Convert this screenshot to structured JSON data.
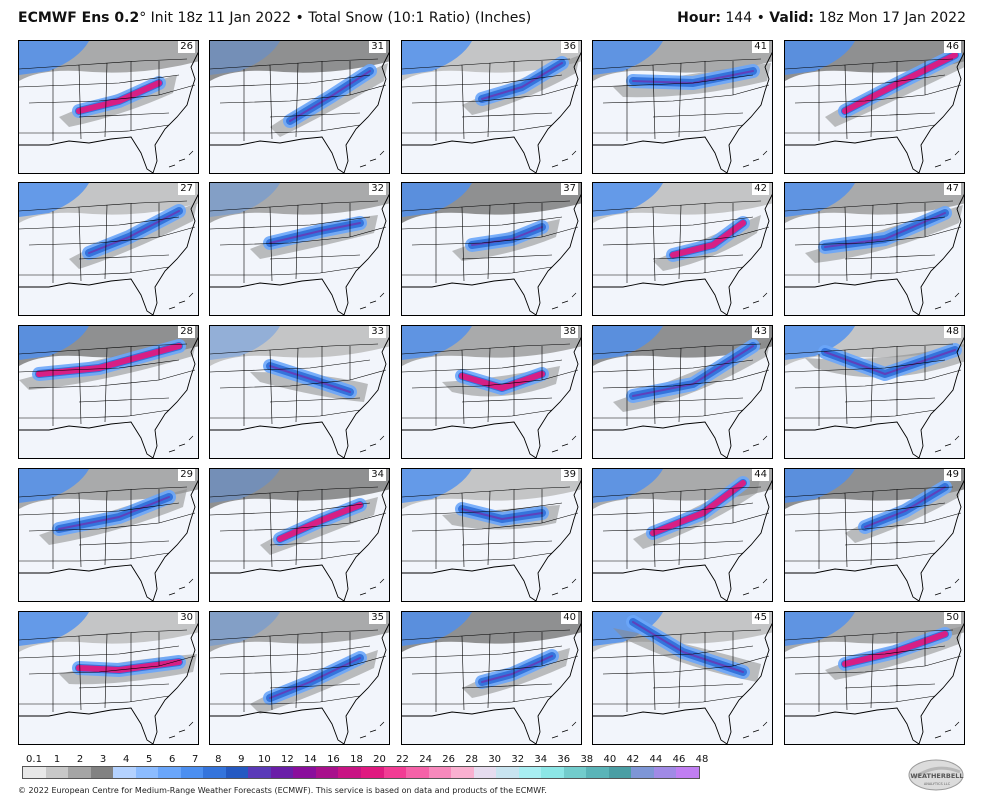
{
  "header": {
    "model": "ECMWF Ens 0.2",
    "degree": "°",
    "init": "Init 18z 11 Jan 2022",
    "bullet": "•",
    "field": "Total Snow (10:1 Ratio) (Inches)",
    "hour_label": "Hour:",
    "hour": "144",
    "valid_label": "Valid:",
    "valid": "18z Mon 17 Jan 2022"
  },
  "members": [
    "26",
    "31",
    "36",
    "41",
    "46",
    "27",
    "32",
    "37",
    "42",
    "47",
    "28",
    "33",
    "38",
    "43",
    "48",
    "29",
    "34",
    "39",
    "44",
    "49",
    "30",
    "35",
    "40",
    "45",
    "50"
  ],
  "legend": {
    "labels": [
      "0.1",
      "1",
      "2",
      "3",
      "4",
      "5",
      "6",
      "7",
      "8",
      "9",
      "10",
      "12",
      "14",
      "16",
      "18",
      "20",
      "22",
      "24",
      "26",
      "28",
      "30",
      "32",
      "34",
      "36",
      "38",
      "40",
      "42",
      "44",
      "46",
      "48"
    ],
    "colors": [
      "#e8e8e8",
      "#c8c8c8",
      "#a5a5a5",
      "#828282",
      "#b4d2ff",
      "#8cbcff",
      "#6aa6fa",
      "#4c8ff0",
      "#3474dc",
      "#2459c2",
      "#5a3ab8",
      "#6a1ea8",
      "#8a0e9c",
      "#a8108c",
      "#c81484",
      "#e01a80",
      "#f23c94",
      "#f562a8",
      "#f789bc",
      "#f9b0d0",
      "#e6dcef",
      "#c8e4f0",
      "#a8eef2",
      "#8ce6e6",
      "#72cccc",
      "#5ab4b8",
      "#4a9ea4",
      "#7e96d6",
      "#a08ae6",
      "#c07ef2"
    ]
  },
  "footer": "© 2022 European Centre for Medium-Range Weather Forecasts (ECMWF). This service is based on data and products of the ECMWF.",
  "logo": {
    "brand": "WEATHERBELL",
    "sub": "ANALYTICS LLC"
  }
}
